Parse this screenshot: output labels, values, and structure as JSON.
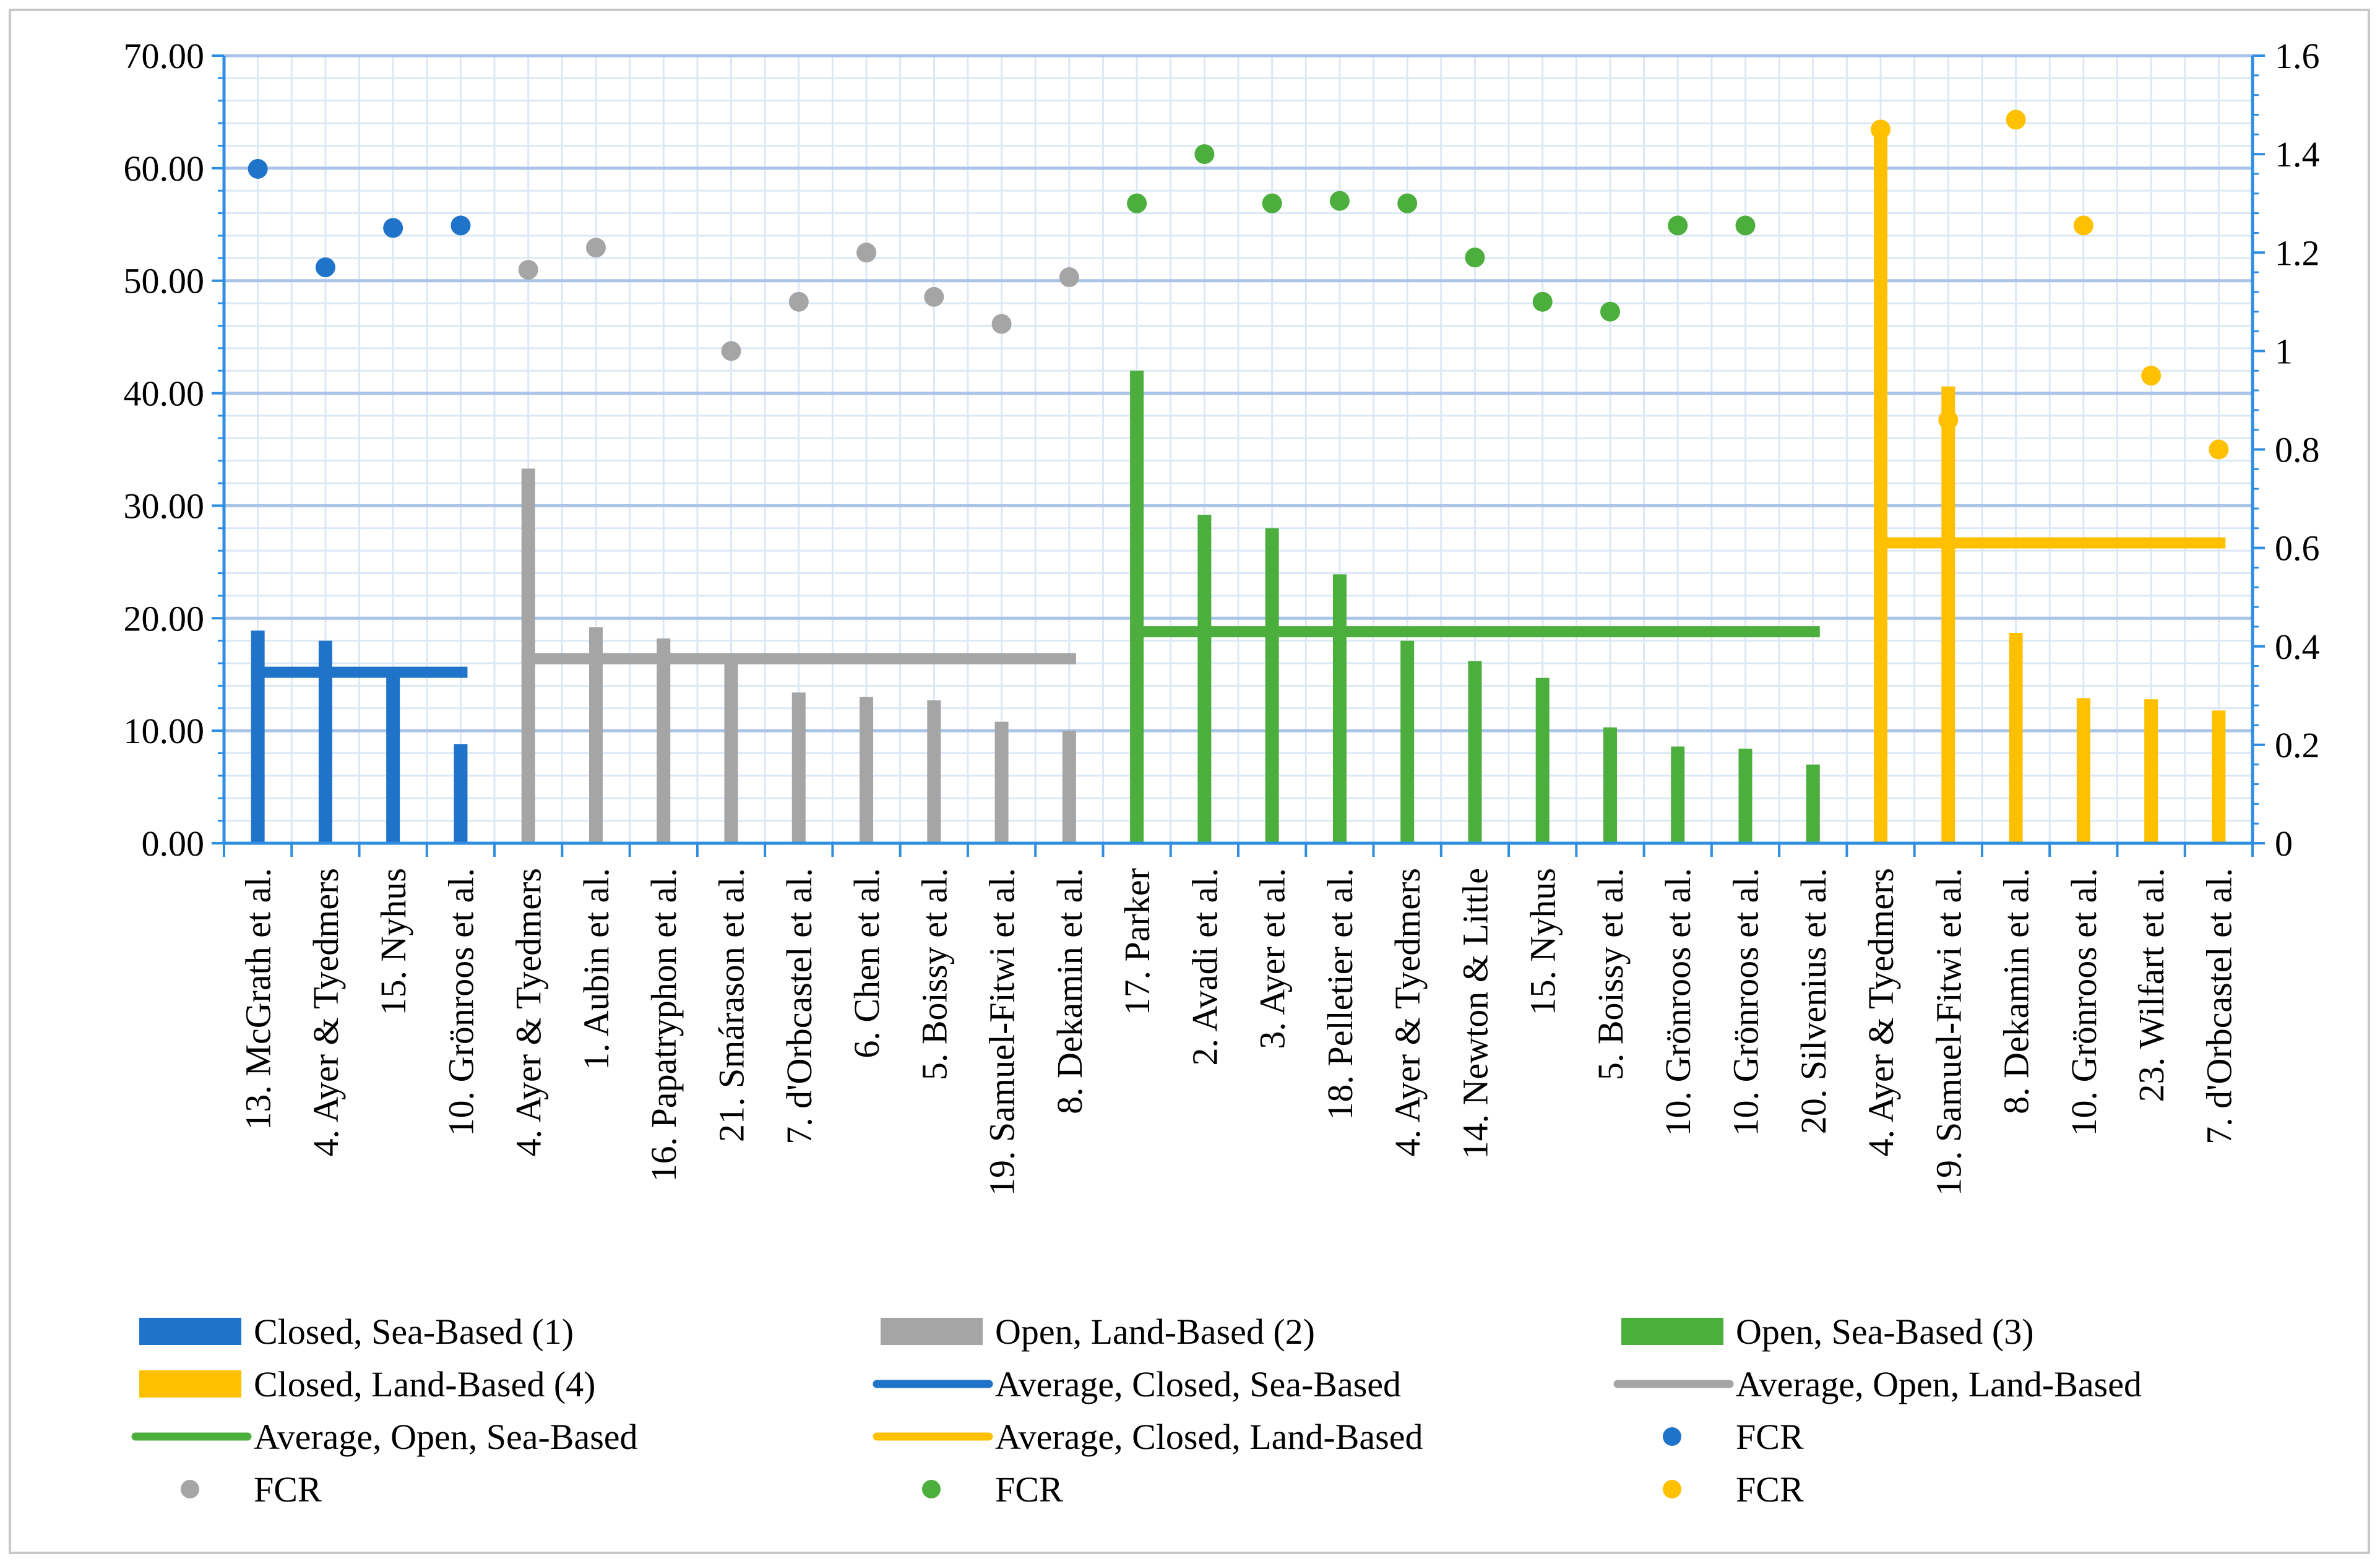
{
  "chart_data": {
    "type": "bar",
    "title": "",
    "xlabel": "",
    "ylabel": "",
    "ylabel_right": "",
    "ylim": [
      0,
      70
    ],
    "ylim_right": [
      0,
      1.6
    ],
    "yticks": [
      "0.00",
      "10.00",
      "20.00",
      "30.00",
      "40.00",
      "50.00",
      "60.00",
      "70.00"
    ],
    "yticks_right": [
      "0",
      "0.2",
      "0.4",
      "0.6",
      "0.8",
      "1",
      "1.2",
      "1.4",
      "1.6"
    ],
    "grid": true,
    "legend_position": "bottom",
    "colors": {
      "closed_sea": "#1f73c9",
      "open_land": "#a5a5a5",
      "open_sea": "#4cae3c",
      "closed_land": "#ffc000"
    },
    "groups": [
      {
        "name": "Closed, Sea-Based  (1)",
        "color_key": "closed_sea",
        "average": 15.2,
        "average_label": "Average, Closed, Sea-Based",
        "categories": [
          "13. McGrath et al.",
          "4. Ayer & Tyedmers",
          "15. Nyhus",
          "10. Grönroos et al."
        ],
        "values": [
          18.9,
          18.0,
          15.0,
          8.8
        ],
        "fcr": [
          1.37,
          1.17,
          1.25,
          1.255
        ]
      },
      {
        "name": "Open, Land-Based (2)",
        "color_key": "open_land",
        "average": 16.4,
        "average_label": "Average, Open, Land-Based",
        "categories": [
          "4. Ayer & Tyedmers",
          "1. Aubin et al.",
          "16. Papatryphon et al.",
          "21. Smárason et al.",
          "7. d'Orbcastel et al.",
          "6. Chen et al.",
          "5. Boissy et al.",
          "19. Samuel-Fitwi et al.",
          "8. Dekamin et al."
        ],
        "values": [
          33.3,
          19.2,
          18.2,
          16.0,
          13.4,
          13.0,
          12.7,
          10.8,
          10.0
        ],
        "fcr": [
          1.165,
          1.21,
          null,
          1.0,
          1.1,
          1.2,
          1.11,
          1.055,
          1.15
        ]
      },
      {
        "name": "Open, Sea-Based (3)",
        "color_key": "open_sea",
        "average": 18.8,
        "average_label": "Average, Open, Sea-Based",
        "categories": [
          "17. Parker",
          "2. Avadi et al.",
          "3. Ayer et al.",
          "18. Pelletier et al.",
          "4. Ayer & Tyedmers",
          "14. Newton & Little",
          "15. Nyhus",
          "5. Boissy et al.",
          "10. Grönroos et al.",
          "10. Grönroos et al.",
          "20. Silvenius et al."
        ],
        "values": [
          42.0,
          29.2,
          28.0,
          23.9,
          18.0,
          16.2,
          14.7,
          10.3,
          8.6,
          8.4,
          7.0
        ],
        "fcr": [
          1.3,
          1.4,
          1.3,
          1.305,
          1.3,
          1.19,
          1.1,
          1.08,
          1.255,
          1.255,
          null
        ]
      },
      {
        "name": "Closed, Land-Based (4)",
        "color_key": "closed_land",
        "average": 26.7,
        "average_label": "Average, Closed, Land-Based",
        "categories": [
          "4. Ayer & Tyedmers",
          "19. Samuel-Fitwi et al.",
          "8. Dekamin et al.",
          "10. Grönroos et al.",
          "23. Wilfart et al.",
          "7. d'Orbcastel et al."
        ],
        "values": [
          63.3,
          40.6,
          18.7,
          12.9,
          12.8,
          11.8
        ],
        "fcr": [
          1.45,
          0.86,
          1.47,
          1.255,
          0.95,
          0.8
        ]
      }
    ],
    "legend": [
      {
        "label": "Closed, Sea-Based  (1)",
        "kind": "bar",
        "color_key": "closed_sea"
      },
      {
        "label": "Open, Land-Based (2)",
        "kind": "bar",
        "color_key": "open_land"
      },
      {
        "label": "Open, Sea-Based (3)",
        "kind": "bar",
        "color_key": "open_sea"
      },
      {
        "label": "Closed, Land-Based (4)",
        "kind": "bar",
        "color_key": "closed_land"
      },
      {
        "label": "Average, Closed, Sea-Based",
        "kind": "line",
        "color_key": "closed_sea"
      },
      {
        "label": "Average, Open, Land-Based",
        "kind": "line",
        "color_key": "open_land"
      },
      {
        "label": "Average, Open, Sea-Based",
        "kind": "line",
        "color_key": "open_sea"
      },
      {
        "label": "Average, Closed, Land-Based",
        "kind": "line",
        "color_key": "closed_land"
      },
      {
        "label": "FCR",
        "kind": "dot",
        "color_key": "closed_sea"
      },
      {
        "label": "FCR",
        "kind": "dot",
        "color_key": "open_land"
      },
      {
        "label": "FCR",
        "kind": "dot",
        "color_key": "open_sea"
      },
      {
        "label": "FCR",
        "kind": "dot",
        "color_key": "closed_land"
      }
    ]
  }
}
